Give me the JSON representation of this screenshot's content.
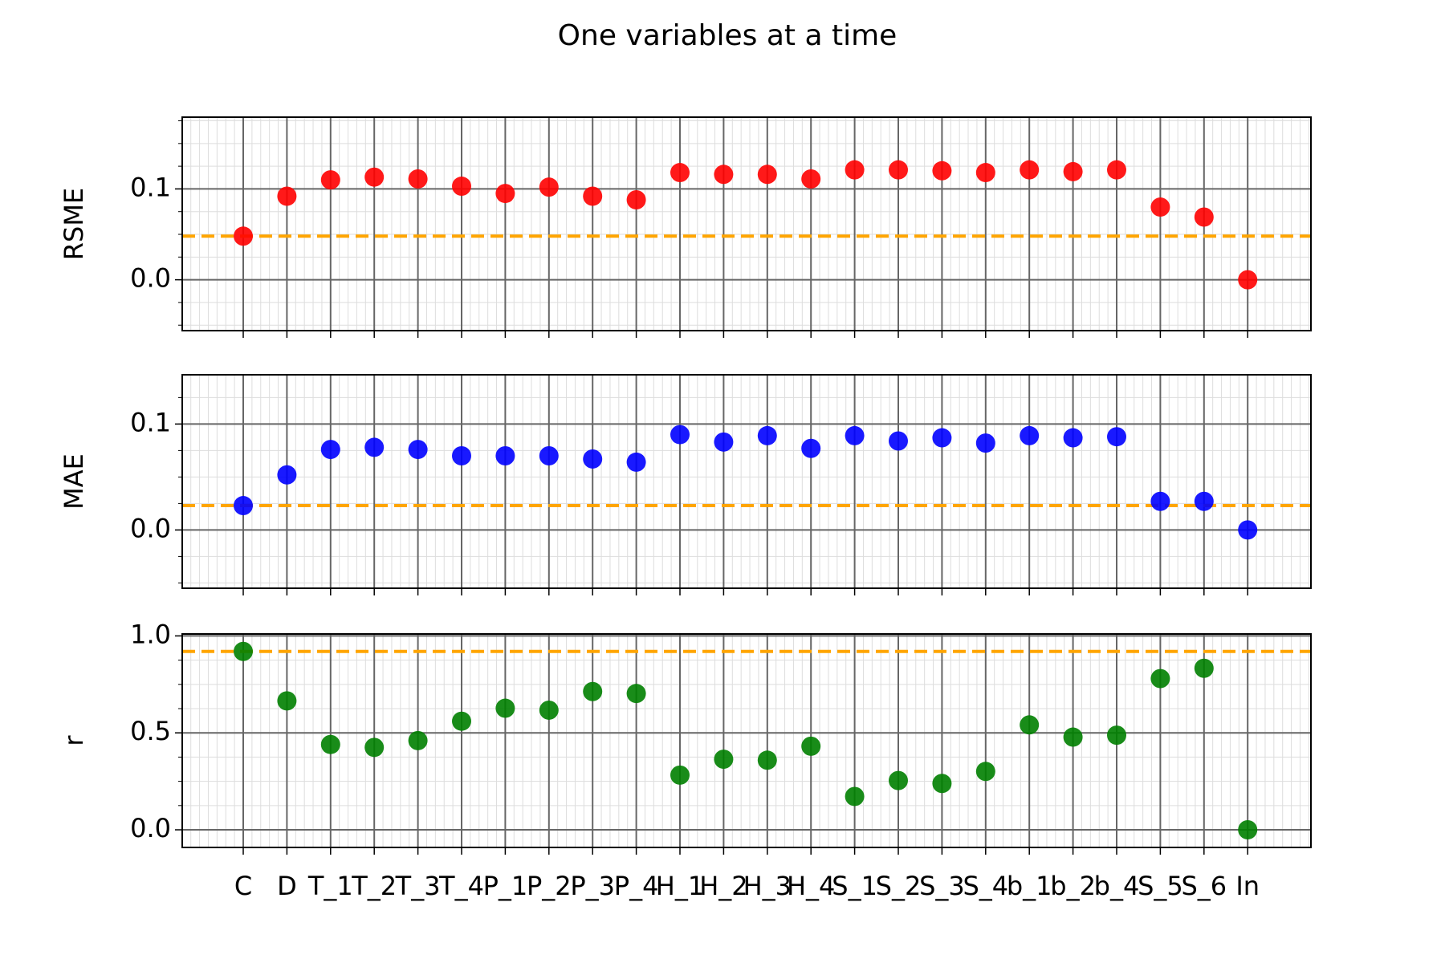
{
  "title": "One variables at a time",
  "chart_data": [
    {
      "type": "scatter",
      "y_label": "RSME",
      "color": "#ff0000",
      "values": [
        0.048,
        0.092,
        0.11,
        0.113,
        0.111,
        0.103,
        0.095,
        0.102,
        0.092,
        0.088,
        0.118,
        0.116,
        0.116,
        0.111,
        0.121,
        0.121,
        0.12,
        0.118,
        0.121,
        0.119,
        0.121,
        0.08,
        0.069,
        0.0
      ],
      "ylim": [
        -0.056,
        0.179
      ],
      "yticks": [
        {
          "value": 0,
          "label": "0.0"
        },
        0.1
      ],
      "reference_line": {
        "value": 0.048,
        "color": "#ffa500"
      },
      "grid": true
    },
    {
      "type": "scatter",
      "y_label": "MAE",
      "color": "#0000ff",
      "values": [
        0.023,
        0.052,
        0.076,
        0.078,
        0.076,
        0.07,
        0.07,
        0.07,
        0.067,
        0.064,
        0.09,
        0.083,
        0.089,
        0.077,
        0.089,
        0.084,
        0.087,
        0.082,
        0.089,
        0.087,
        0.088,
        0.027,
        0.027,
        0.0
      ],
      "ylim": [
        -0.055,
        0.1465
      ],
      "yticks": [
        {
          "value": 0,
          "label": "0.0"
        },
        0.1
      ],
      "reference_line": {
        "value": 0.023,
        "color": "#ffa500"
      },
      "grid": true
    },
    {
      "type": "scatter",
      "y_label": "r",
      "color": "#008000",
      "categories": [
        "C",
        "D",
        "T_1",
        "T_2",
        "T_3",
        "T_4",
        "P_1",
        "P_2",
        "P_3",
        "P_4",
        "H_1",
        "H_2",
        "H_3",
        "H_4",
        "S_1",
        "S_2",
        "S_3",
        "S_4",
        "b_1",
        "b_2",
        "b_4",
        "S_5",
        "S_6",
        "In"
      ],
      "values": [
        0.92,
        0.665,
        0.44,
        0.425,
        0.46,
        0.56,
        0.627,
        0.617,
        0.713,
        0.703,
        0.282,
        0.364,
        0.359,
        0.431,
        0.172,
        0.254,
        0.239,
        0.301,
        0.541,
        0.478,
        0.488,
        0.78,
        0.833,
        0.0
      ],
      "ylim": [
        -0.091,
        1.01
      ],
      "yticks": [
        {
          "value": 0,
          "label": "0.0"
        },
        0.5,
        {
          "value": 1,
          "label": "1.0"
        }
      ],
      "reference_line": {
        "value": 0.92,
        "color": "#ffa500"
      },
      "grid": true
    }
  ]
}
